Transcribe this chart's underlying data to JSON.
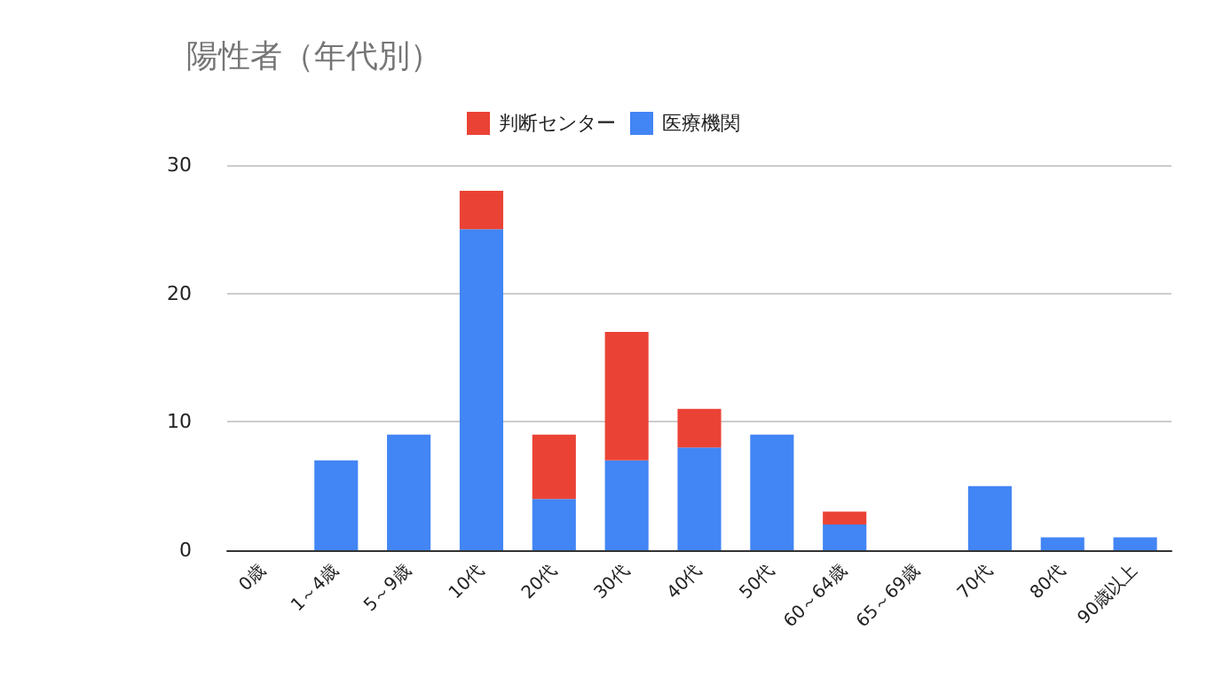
{
  "chart_data": {
    "type": "bar",
    "title": "陽性者（年代別）",
    "stacked": true,
    "categories": [
      "0歳",
      "1～4歳",
      "5～9歳",
      "10代",
      "20代",
      "30代",
      "40代",
      "50代",
      "60～64歳",
      "65～69歳",
      "70代",
      "80代",
      "90歳以上"
    ],
    "series": [
      {
        "name": "医療機関",
        "color": "#4285f4",
        "values": [
          0,
          7,
          9,
          25,
          4,
          7,
          8,
          9,
          2,
          0,
          5,
          1,
          1
        ]
      },
      {
        "name": "判断センター",
        "color": "#ea4335",
        "values": [
          0,
          0,
          0,
          3,
          5,
          10,
          3,
          0,
          1,
          0,
          0,
          0,
          0
        ]
      }
    ],
    "ylim": [
      0,
      30
    ],
    "yticks": [
      0,
      10,
      20,
      30
    ],
    "grid": "y",
    "legend": "top"
  }
}
